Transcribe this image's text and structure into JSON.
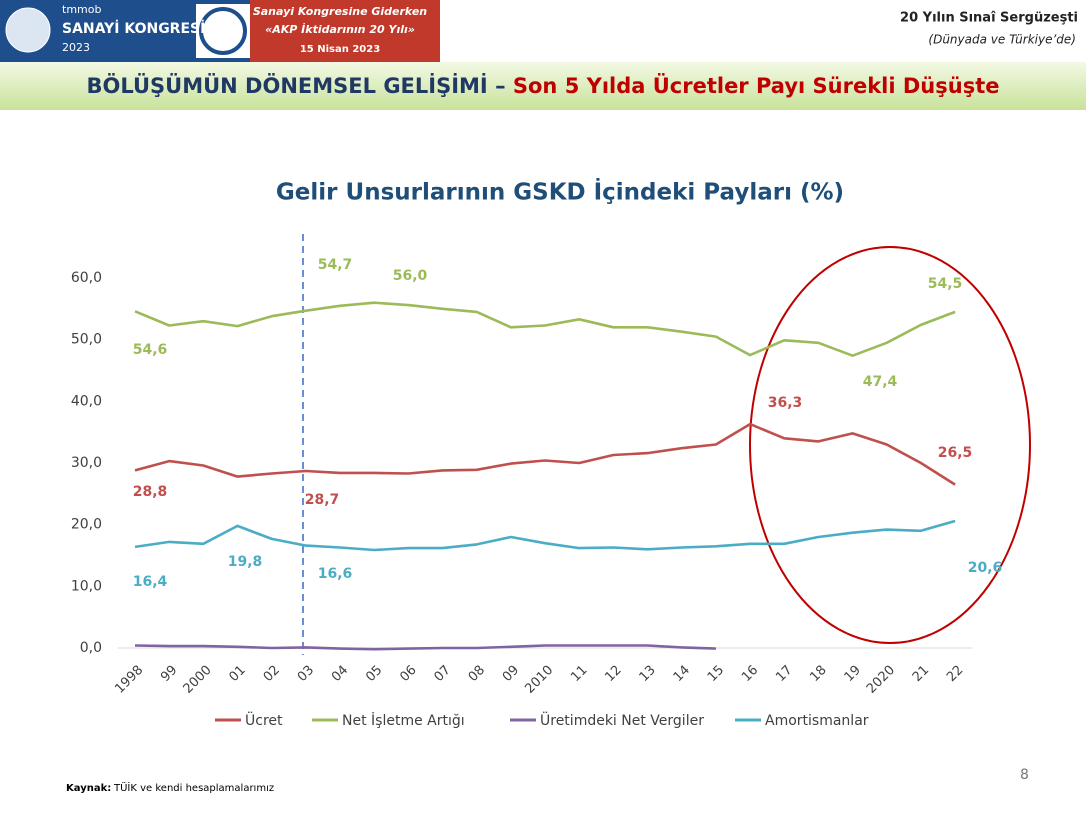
{
  "header": {
    "org": "tmmob",
    "congress": "SANAYİ KONGRESİ",
    "year": "2023",
    "event_line1": "Sanayi Kongresine Giderken",
    "event_line2": "«AKP İktidarının 20 Yılı»",
    "event_date": "15 Nisan 2023",
    "right_title": "20 Yılın Sınaî Sergüzeşti",
    "right_subtitle": "(Dünyada ve Türkiye’de)"
  },
  "slide_title": {
    "main": "BÖLÜŞÜMÜN DÖNEMSEL GELİŞİMİ",
    "dash": "–",
    "highlight": "Son 5 Yılda Ücretler Payı Sürekli Düşüşte"
  },
  "chart_data": {
    "type": "line",
    "title": "Gelir Unsurlarının GSKD İçindeki Payları (%)",
    "categories": [
      "1998",
      "99",
      "2000",
      "01",
      "02",
      "03",
      "04",
      "05",
      "06",
      "07",
      "08",
      "09",
      "2010",
      "11",
      "12",
      "13",
      "14",
      "15",
      "16",
      "17",
      "18",
      "19",
      "2020",
      "21",
      "22"
    ],
    "series": [
      {
        "name": "Ücret",
        "color": "#c0504d",
        "values": [
          28.8,
          30.3,
          29.6,
          27.8,
          28.3,
          28.7,
          28.4,
          28.4,
          28.3,
          28.8,
          28.9,
          29.9,
          30.4,
          30.0,
          31.3,
          31.6,
          32.4,
          33.0,
          36.3,
          34.0,
          33.5,
          34.8,
          33.0,
          30.0,
          26.5
        ],
        "value_labels": [
          "28,8",
          null,
          null,
          null,
          null,
          "28,7",
          null,
          null,
          null,
          null,
          null,
          null,
          null,
          null,
          null,
          null,
          null,
          null,
          "36,3",
          null,
          null,
          null,
          null,
          null,
          "26,5"
        ]
      },
      {
        "name": "Net İşletme Artığı",
        "color": "#9bbb59",
        "values": [
          54.6,
          52.3,
          53.0,
          52.2,
          53.8,
          54.7,
          55.5,
          56.0,
          55.6,
          55.0,
          54.5,
          52.0,
          52.3,
          53.3,
          52.0,
          52.0,
          51.3,
          50.5,
          47.5,
          49.9,
          49.5,
          47.4,
          49.5,
          52.4,
          54.5
        ],
        "value_labels": [
          "54,6",
          null,
          null,
          null,
          null,
          "54,7",
          null,
          "56,0",
          null,
          null,
          null,
          null,
          null,
          null,
          null,
          null,
          null,
          null,
          null,
          null,
          null,
          "47,4",
          null,
          null,
          "54,5"
        ]
      },
      {
        "name": "Üretimdeki Net Vergiler",
        "color": "#8064a2",
        "values": [
          0.4,
          0.3,
          0.3,
          0.2,
          0.0,
          0.1,
          -0.1,
          -0.2,
          -0.1,
          0.0,
          0.0,
          0.2,
          0.4,
          0.4,
          0.4,
          0.4,
          0.1,
          -0.1,
          null,
          null,
          null,
          null,
          null,
          null,
          null
        ]
      },
      {
        "name": "Amortismanlar",
        "color": "#4bacc6",
        "values": [
          16.4,
          17.2,
          16.9,
          19.8,
          17.7,
          16.6,
          16.3,
          15.9,
          16.2,
          16.2,
          16.8,
          18.0,
          17.0,
          16.2,
          16.3,
          16.0,
          16.3,
          16.5,
          16.9,
          16.9,
          18.0,
          18.7,
          19.2,
          19.0,
          20.6
        ],
        "value_labels": [
          "16,4",
          null,
          null,
          "19,8",
          null,
          "16,6",
          null,
          null,
          null,
          null,
          null,
          null,
          null,
          null,
          null,
          null,
          null,
          null,
          null,
          null,
          null,
          null,
          null,
          null,
          "20,6"
        ]
      }
    ],
    "ylim": [
      0,
      60
    ],
    "yticks": [
      {
        "value": 0,
        "label": "0,0"
      },
      {
        "value": 10,
        "label": "10,0"
      },
      {
        "value": 20,
        "label": "20,0"
      },
      {
        "value": 30,
        "label": "30,0"
      },
      {
        "value": 40,
        "label": "40,0"
      },
      {
        "value": 50,
        "label": "50,0"
      },
      {
        "value": 60,
        "label": "60,0"
      }
    ],
    "grid": false,
    "legend": "bottom"
  },
  "footer": {
    "source_label": "Kaynak:",
    "source_text": "TÜİK ve kendi hesaplamalarımız",
    "page": "8"
  }
}
